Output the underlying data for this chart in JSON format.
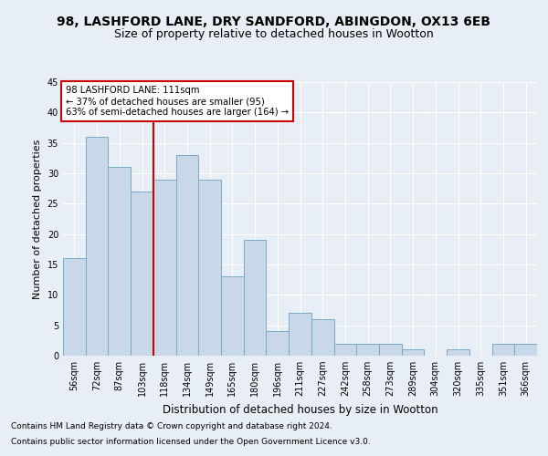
{
  "title1": "98, LASHFORD LANE, DRY SANDFORD, ABINGDON, OX13 6EB",
  "title2": "Size of property relative to detached houses in Wootton",
  "xlabel": "Distribution of detached houses by size in Wootton",
  "ylabel": "Number of detached properties",
  "footnote1": "Contains HM Land Registry data © Crown copyright and database right 2024.",
  "footnote2": "Contains public sector information licensed under the Open Government Licence v3.0.",
  "bar_labels": [
    "56sqm",
    "72sqm",
    "87sqm",
    "103sqm",
    "118sqm",
    "134sqm",
    "149sqm",
    "165sqm",
    "180sqm",
    "196sqm",
    "211sqm",
    "227sqm",
    "242sqm",
    "258sqm",
    "273sqm",
    "289sqm",
    "304sqm",
    "320sqm",
    "335sqm",
    "351sqm",
    "366sqm"
  ],
  "bar_values": [
    16,
    36,
    31,
    27,
    29,
    33,
    29,
    13,
    19,
    4,
    7,
    6,
    2,
    2,
    2,
    1,
    0,
    1,
    0,
    2,
    2
  ],
  "bar_color": "#c8d8e8",
  "bar_edgecolor": "#7aaac8",
  "vline_x": 3.5,
  "vline_color": "#cc0000",
  "annotation_box_text": "98 LASHFORD LANE: 111sqm\n← 37% of detached houses are smaller (95)\n63% of semi-detached houses are larger (164) →",
  "annotation_box_color": "#cc0000",
  "ylim": [
    0,
    45
  ],
  "yticks": [
    0,
    5,
    10,
    15,
    20,
    25,
    30,
    35,
    40,
    45
  ],
  "background_color": "#e8eef6",
  "plot_background": "#e8eef6",
  "grid_color": "#ffffff",
  "title1_fontsize": 10,
  "title2_fontsize": 9,
  "xlabel_fontsize": 8.5,
  "ylabel_fontsize": 8,
  "tick_fontsize": 7,
  "footnote_fontsize": 6.5
}
